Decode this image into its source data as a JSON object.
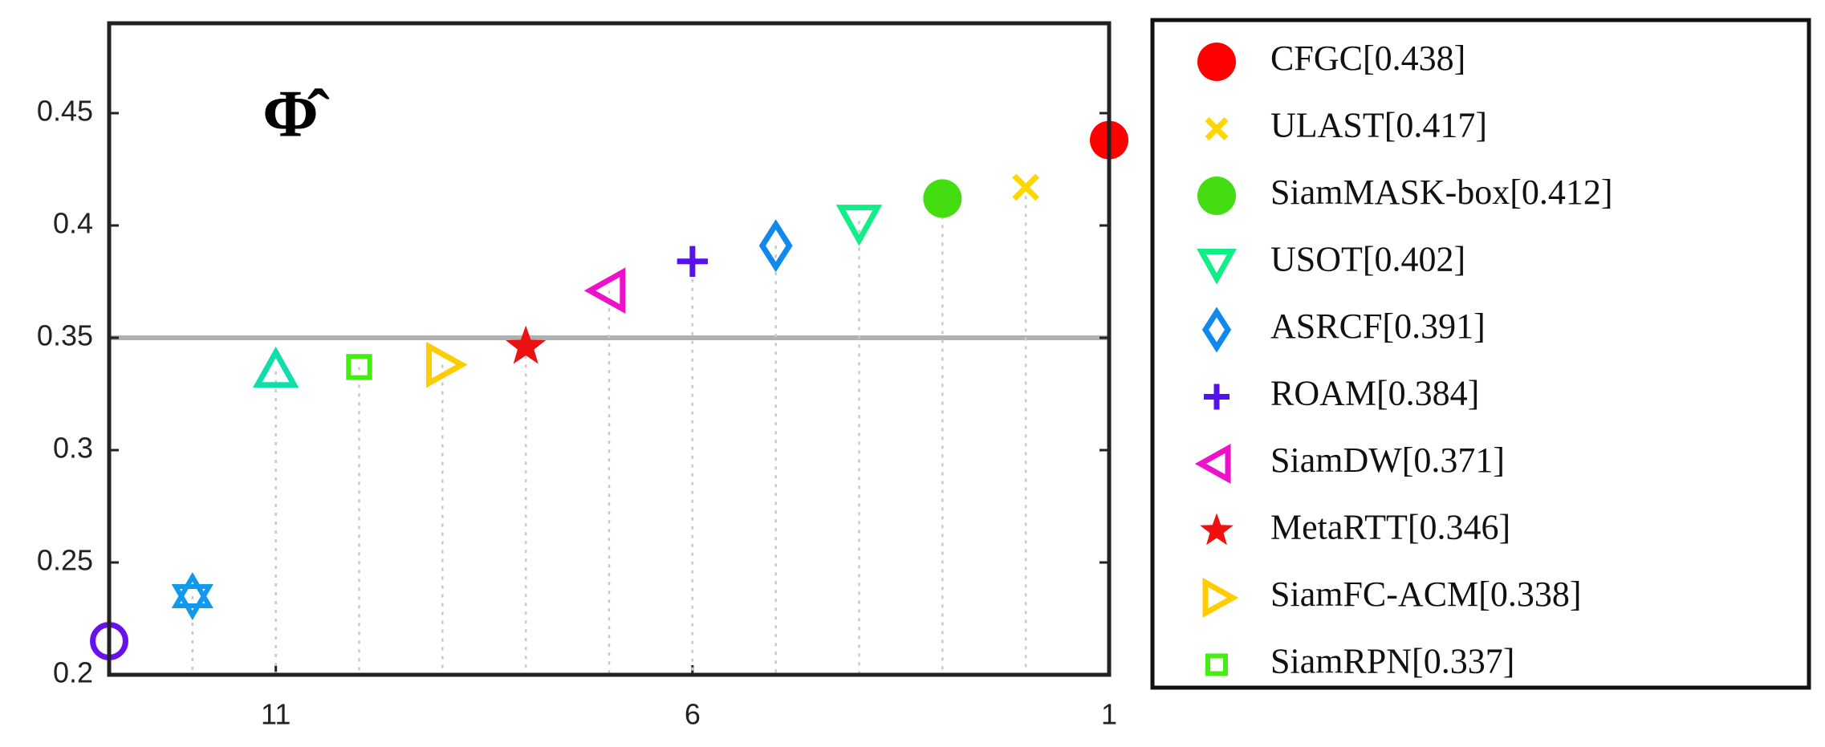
{
  "chart_data": {
    "type": "scatter",
    "annotation": "Φ̂",
    "xlim": [
      13,
      1
    ],
    "xticks": [
      11,
      6,
      1
    ],
    "ylim": [
      0.2,
      0.49
    ],
    "yticks": [
      0.2,
      0.25,
      0.3,
      0.35,
      0.4,
      0.45
    ],
    "reference_line": 0.35,
    "reference_color": "#b0b0b0",
    "grid": false,
    "series": [
      {
        "name": "CFGC[0.438]",
        "color": "#ff0000",
        "marker": "circle-filled",
        "x": [
          1
        ],
        "values": [
          0.438
        ]
      },
      {
        "name": "ULAST[0.417]",
        "color": "#ffd700",
        "marker": "x",
        "x": [
          2
        ],
        "values": [
          0.417
        ]
      },
      {
        "name": "SiamMASK-box[0.412]",
        "color": "#44dd11",
        "marker": "circle-filled",
        "x": [
          3
        ],
        "values": [
          0.412
        ]
      },
      {
        "name": "USOT[0.402]",
        "color": "#11ee88",
        "marker": "triangle-down",
        "x": [
          4
        ],
        "values": [
          0.402
        ]
      },
      {
        "name": "ASRCF[0.391]",
        "color": "#1188ee",
        "marker": "diamond",
        "x": [
          5
        ],
        "values": [
          0.391
        ]
      },
      {
        "name": "ROAM[0.384]",
        "color": "#5511ee",
        "marker": "plus",
        "x": [
          6
        ],
        "values": [
          0.384
        ]
      },
      {
        "name": "SiamDW[0.371]",
        "color": "#ee11cc",
        "marker": "triangle-left",
        "x": [
          7
        ],
        "values": [
          0.371
        ]
      },
      {
        "name": "MetaRTT[0.346]",
        "color": "#ee1111",
        "marker": "star",
        "x": [
          8
        ],
        "values": [
          0.346
        ]
      },
      {
        "name": "SiamFC-ACM[0.338]",
        "color": "#ffcc00",
        "marker": "triangle-right",
        "x": [
          9
        ],
        "values": [
          0.338
        ]
      },
      {
        "name": "SiamRPN[0.337]",
        "color": "#44ee11",
        "marker": "square",
        "x": [
          10
        ],
        "values": [
          0.337
        ]
      },
      {
        "color": "#11ddaa",
        "marker": "triangle-up",
        "x": [
          11
        ],
        "values": [
          0.335
        ]
      },
      {
        "color": "#1199ee",
        "marker": "hexagram",
        "x": [
          12
        ],
        "values": [
          0.235
        ]
      },
      {
        "color": "#6611ee",
        "marker": "circle",
        "x": [
          13
        ],
        "values": [
          0.215
        ]
      }
    ]
  }
}
